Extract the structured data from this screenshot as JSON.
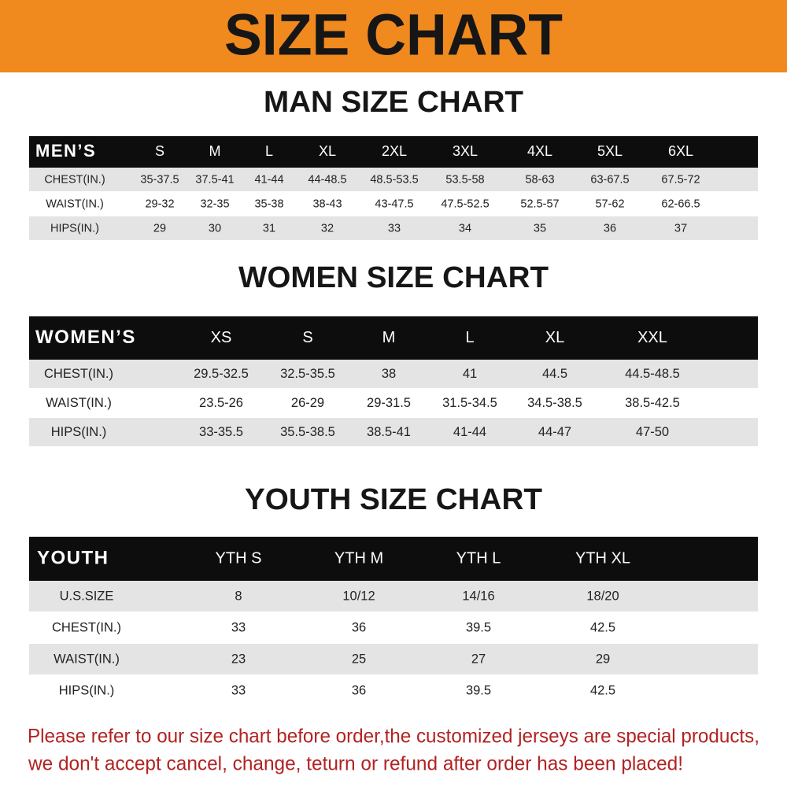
{
  "header": {
    "title": "SIZE CHART"
  },
  "men": {
    "title": "MAN SIZE CHART",
    "table": {
      "header": [
        "MEN’S",
        "S",
        "M",
        "L",
        "XL",
        "2XL",
        "3XL",
        "4XL",
        "5XL",
        "6XL"
      ],
      "rows": [
        [
          "CHEST(IN.)",
          "35-37.5",
          "37.5-41",
          "41-44",
          "44-48.5",
          "48.5-53.5",
          "53.5-58",
          "58-63",
          "63-67.5",
          "67.5-72"
        ],
        [
          "WAIST(IN.)",
          "29-32",
          "32-35",
          "35-38",
          "38-43",
          "43-47.5",
          "47.5-52.5",
          "52.5-57",
          "57-62",
          "62-66.5"
        ],
        [
          "HIPS(IN.)",
          "29",
          "30",
          "31",
          "32",
          "33",
          "34",
          "35",
          "36",
          "37"
        ]
      ]
    }
  },
  "women": {
    "title": "WOMEN SIZE CHART",
    "table": {
      "header": [
        "WOMEN’S",
        "XS",
        "S",
        "M",
        "L",
        "XL",
        "XXL"
      ],
      "rows": [
        [
          "CHEST(IN.)",
          "29.5-32.5",
          "32.5-35.5",
          "38",
          "41",
          "44.5",
          "44.5-48.5"
        ],
        [
          "WAIST(IN.)",
          "23.5-26",
          "26-29",
          "29-31.5",
          "31.5-34.5",
          "34.5-38.5",
          "38.5-42.5"
        ],
        [
          "HIPS(IN.)",
          "33-35.5",
          "35.5-38.5",
          "38.5-41",
          "41-44",
          "44-47",
          "47-50"
        ]
      ]
    }
  },
  "youth": {
    "title": "YOUTH SIZE CHART",
    "table": {
      "header": [
        "YOUTH",
        "YTH S",
        "YTH M",
        "YTH L",
        "YTH XL"
      ],
      "rows": [
        [
          "U.S.SIZE",
          "8",
          "10/12",
          "14/16",
          "18/20"
        ],
        [
          "CHEST(IN.)",
          "33",
          "36",
          "39.5",
          "42.5"
        ],
        [
          "WAIST(IN.)",
          "23",
          "25",
          "27",
          "29"
        ],
        [
          "HIPS(IN.)",
          "33",
          "36",
          "39.5",
          "42.5"
        ]
      ]
    }
  },
  "footer": {
    "lines": [
      "Please refer to our size chart before order,the customized jerseys are special products,",
      "we don't accept cancel, change, teturn or refund after order has been placed!"
    ]
  }
}
